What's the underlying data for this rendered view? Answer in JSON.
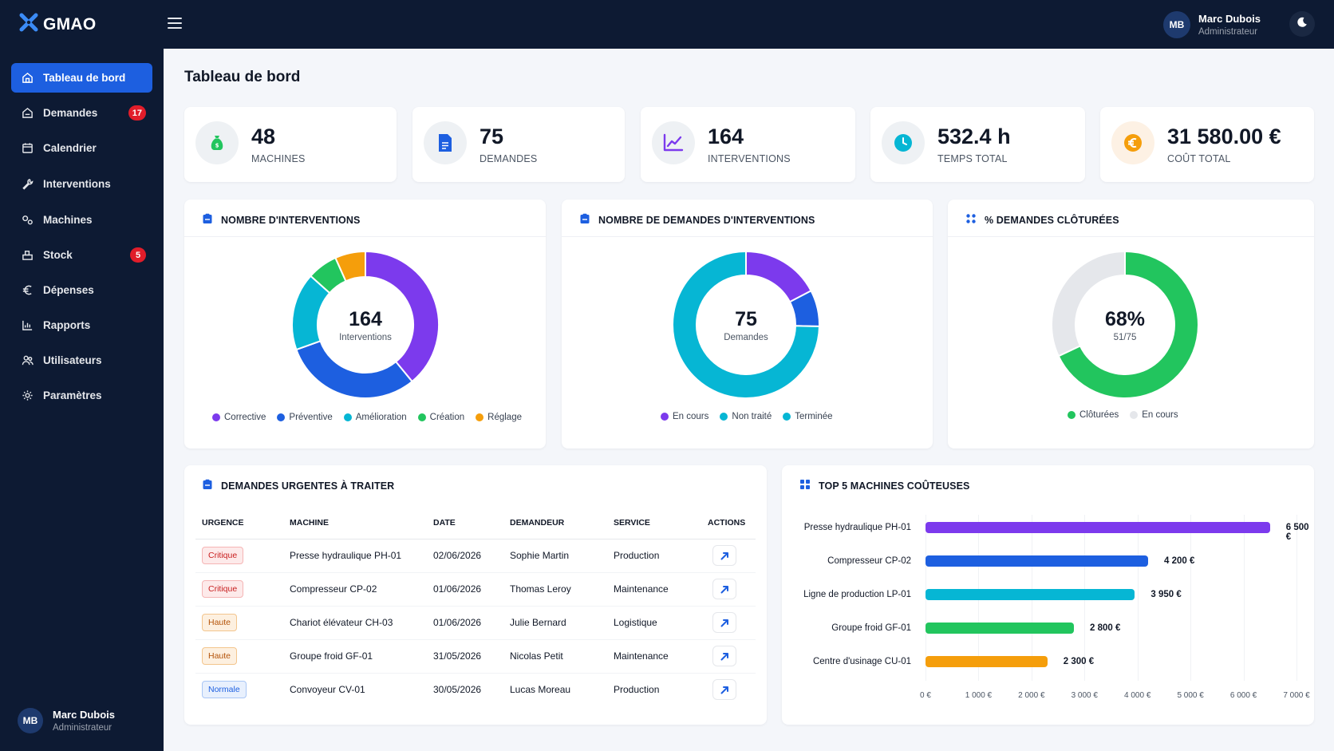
{
  "app": {
    "name": "GMAO"
  },
  "user": {
    "initials": "MB",
    "name": "Marc Dubois",
    "role": "Administrateur"
  },
  "sidebar": {
    "items": [
      {
        "label": "Tableau de bord",
        "icon": "home-icon",
        "active": true
      },
      {
        "label": "Demandes",
        "icon": "inbox-icon",
        "badge": "17"
      },
      {
        "label": "Calendrier",
        "icon": "calendar-icon"
      },
      {
        "label": "Interventions",
        "icon": "wrench-icon"
      },
      {
        "label": "Machines",
        "icon": "gears-icon"
      },
      {
        "label": "Stock",
        "icon": "box-icon",
        "badge": "5"
      },
      {
        "label": "Dépenses",
        "icon": "euro-icon"
      },
      {
        "label": "Rapports",
        "icon": "chart-icon"
      },
      {
        "label": "Utilisateurs",
        "icon": "users-icon"
      },
      {
        "label": "Paramètres",
        "icon": "settings-icon"
      }
    ]
  },
  "page": {
    "title": "Tableau de bord"
  },
  "kpis": [
    {
      "value": "48",
      "label": "MACHINES",
      "icon": "money-bag-icon",
      "color": "#22c55e"
    },
    {
      "value": "75",
      "label": "DEMANDES",
      "icon": "document-icon",
      "color": "#1d5fe0"
    },
    {
      "value": "164",
      "label": "INTERVENTIONS",
      "icon": "trend-icon",
      "color": "#7c3aed"
    },
    {
      "value": "532.4 h",
      "label": "TEMPS TOTAL",
      "icon": "clock-icon",
      "color": "#06b6d4"
    },
    {
      "value": "31 580.00 €",
      "label": "COÛT TOTAL",
      "icon": "euro-coin-icon",
      "color": "#f59e0b"
    }
  ],
  "panels": {
    "interventions": {
      "title": "NOMBRE D'INTERVENTIONS",
      "center_value": "164",
      "center_label": "Interventions"
    },
    "demandes": {
      "title": "NOMBRE DE DEMANDES D'INTERVENTIONS",
      "center_value": "75",
      "center_label": "Demandes"
    },
    "closed": {
      "title": "% DEMANDES CLÔTURÉES",
      "center_value": "68%",
      "center_label": "51/75"
    },
    "urgent": {
      "title": "DEMANDES URGENTES À TRAITER"
    },
    "top5": {
      "title": "TOP 5 MACHINES COÛTEUSES"
    }
  },
  "chart_data": [
    {
      "type": "pie",
      "categories": [
        "Corrective",
        "Préventive",
        "Amélioration",
        "Création",
        "Réglage"
      ],
      "values": [
        64,
        50,
        28,
        11,
        11
      ],
      "colors": [
        "#7c3aed",
        "#1d5fe0",
        "#06b6d4",
        "#22c55e",
        "#f59e0b"
      ],
      "legend": "bottom"
    },
    {
      "type": "pie",
      "categories": [
        "En cours",
        "Non traité",
        "Terminée"
      ],
      "values": [
        13,
        6,
        56
      ],
      "colors": [
        "#7c3aed",
        "#1d5fe0",
        "#06b6d4"
      ],
      "legend": "bottom"
    },
    {
      "type": "pie",
      "categories": [
        "Clôturées",
        "En cours"
      ],
      "values": [
        51,
        24
      ],
      "colors": [
        "#22c55e",
        "#e5e7eb"
      ],
      "legend": "bottom"
    },
    {
      "type": "bar",
      "orientation": "horizontal",
      "categories": [
        "Presse hydraulique PH-01",
        "Compresseur CP-02",
        "Ligne de production LP-01",
        "Groupe froid GF-01",
        "Centre d'usinage CU-01"
      ],
      "values": [
        6500,
        4200,
        3950,
        2800,
        2300
      ],
      "value_labels": [
        "6 500 €",
        "4 200 €",
        "3 950 €",
        "2 800 €",
        "2 300 €"
      ],
      "colors": [
        "#7c3aed",
        "#1d5fe0",
        "#06b6d4",
        "#22c55e",
        "#f59e0b"
      ],
      "xlim": [
        0,
        7000
      ],
      "xticks": [
        "0 €",
        "1 000 €",
        "2 000 €",
        "3 000 €",
        "4 000 €",
        "5 000 €",
        "6 000 €",
        "7 000 €"
      ]
    }
  ],
  "urgent_table": {
    "headers": [
      "URGENCE",
      "MACHINE",
      "DATE",
      "DEMANDEUR",
      "SERVICE",
      "ACTIONS"
    ],
    "rows": [
      {
        "urgency": "Critique",
        "level": "crit",
        "machine": "Presse hydraulique PH-01",
        "date": "02/06/2026",
        "requester": "Sophie Martin",
        "service": "Production"
      },
      {
        "urgency": "Critique",
        "level": "crit",
        "machine": "Compresseur CP-02",
        "date": "01/06/2026",
        "requester": "Thomas Leroy",
        "service": "Maintenance"
      },
      {
        "urgency": "Haute",
        "level": "haute",
        "machine": "Chariot élévateur CH-03",
        "date": "01/06/2026",
        "requester": "Julie Bernard",
        "service": "Logistique"
      },
      {
        "urgency": "Haute",
        "level": "haute",
        "machine": "Groupe froid GF-01",
        "date": "31/05/2026",
        "requester": "Nicolas Petit",
        "service": "Maintenance"
      },
      {
        "urgency": "Normale",
        "level": "norm",
        "machine": "Convoyeur CV-01",
        "date": "30/05/2026",
        "requester": "Lucas Moreau",
        "service": "Production"
      }
    ]
  }
}
